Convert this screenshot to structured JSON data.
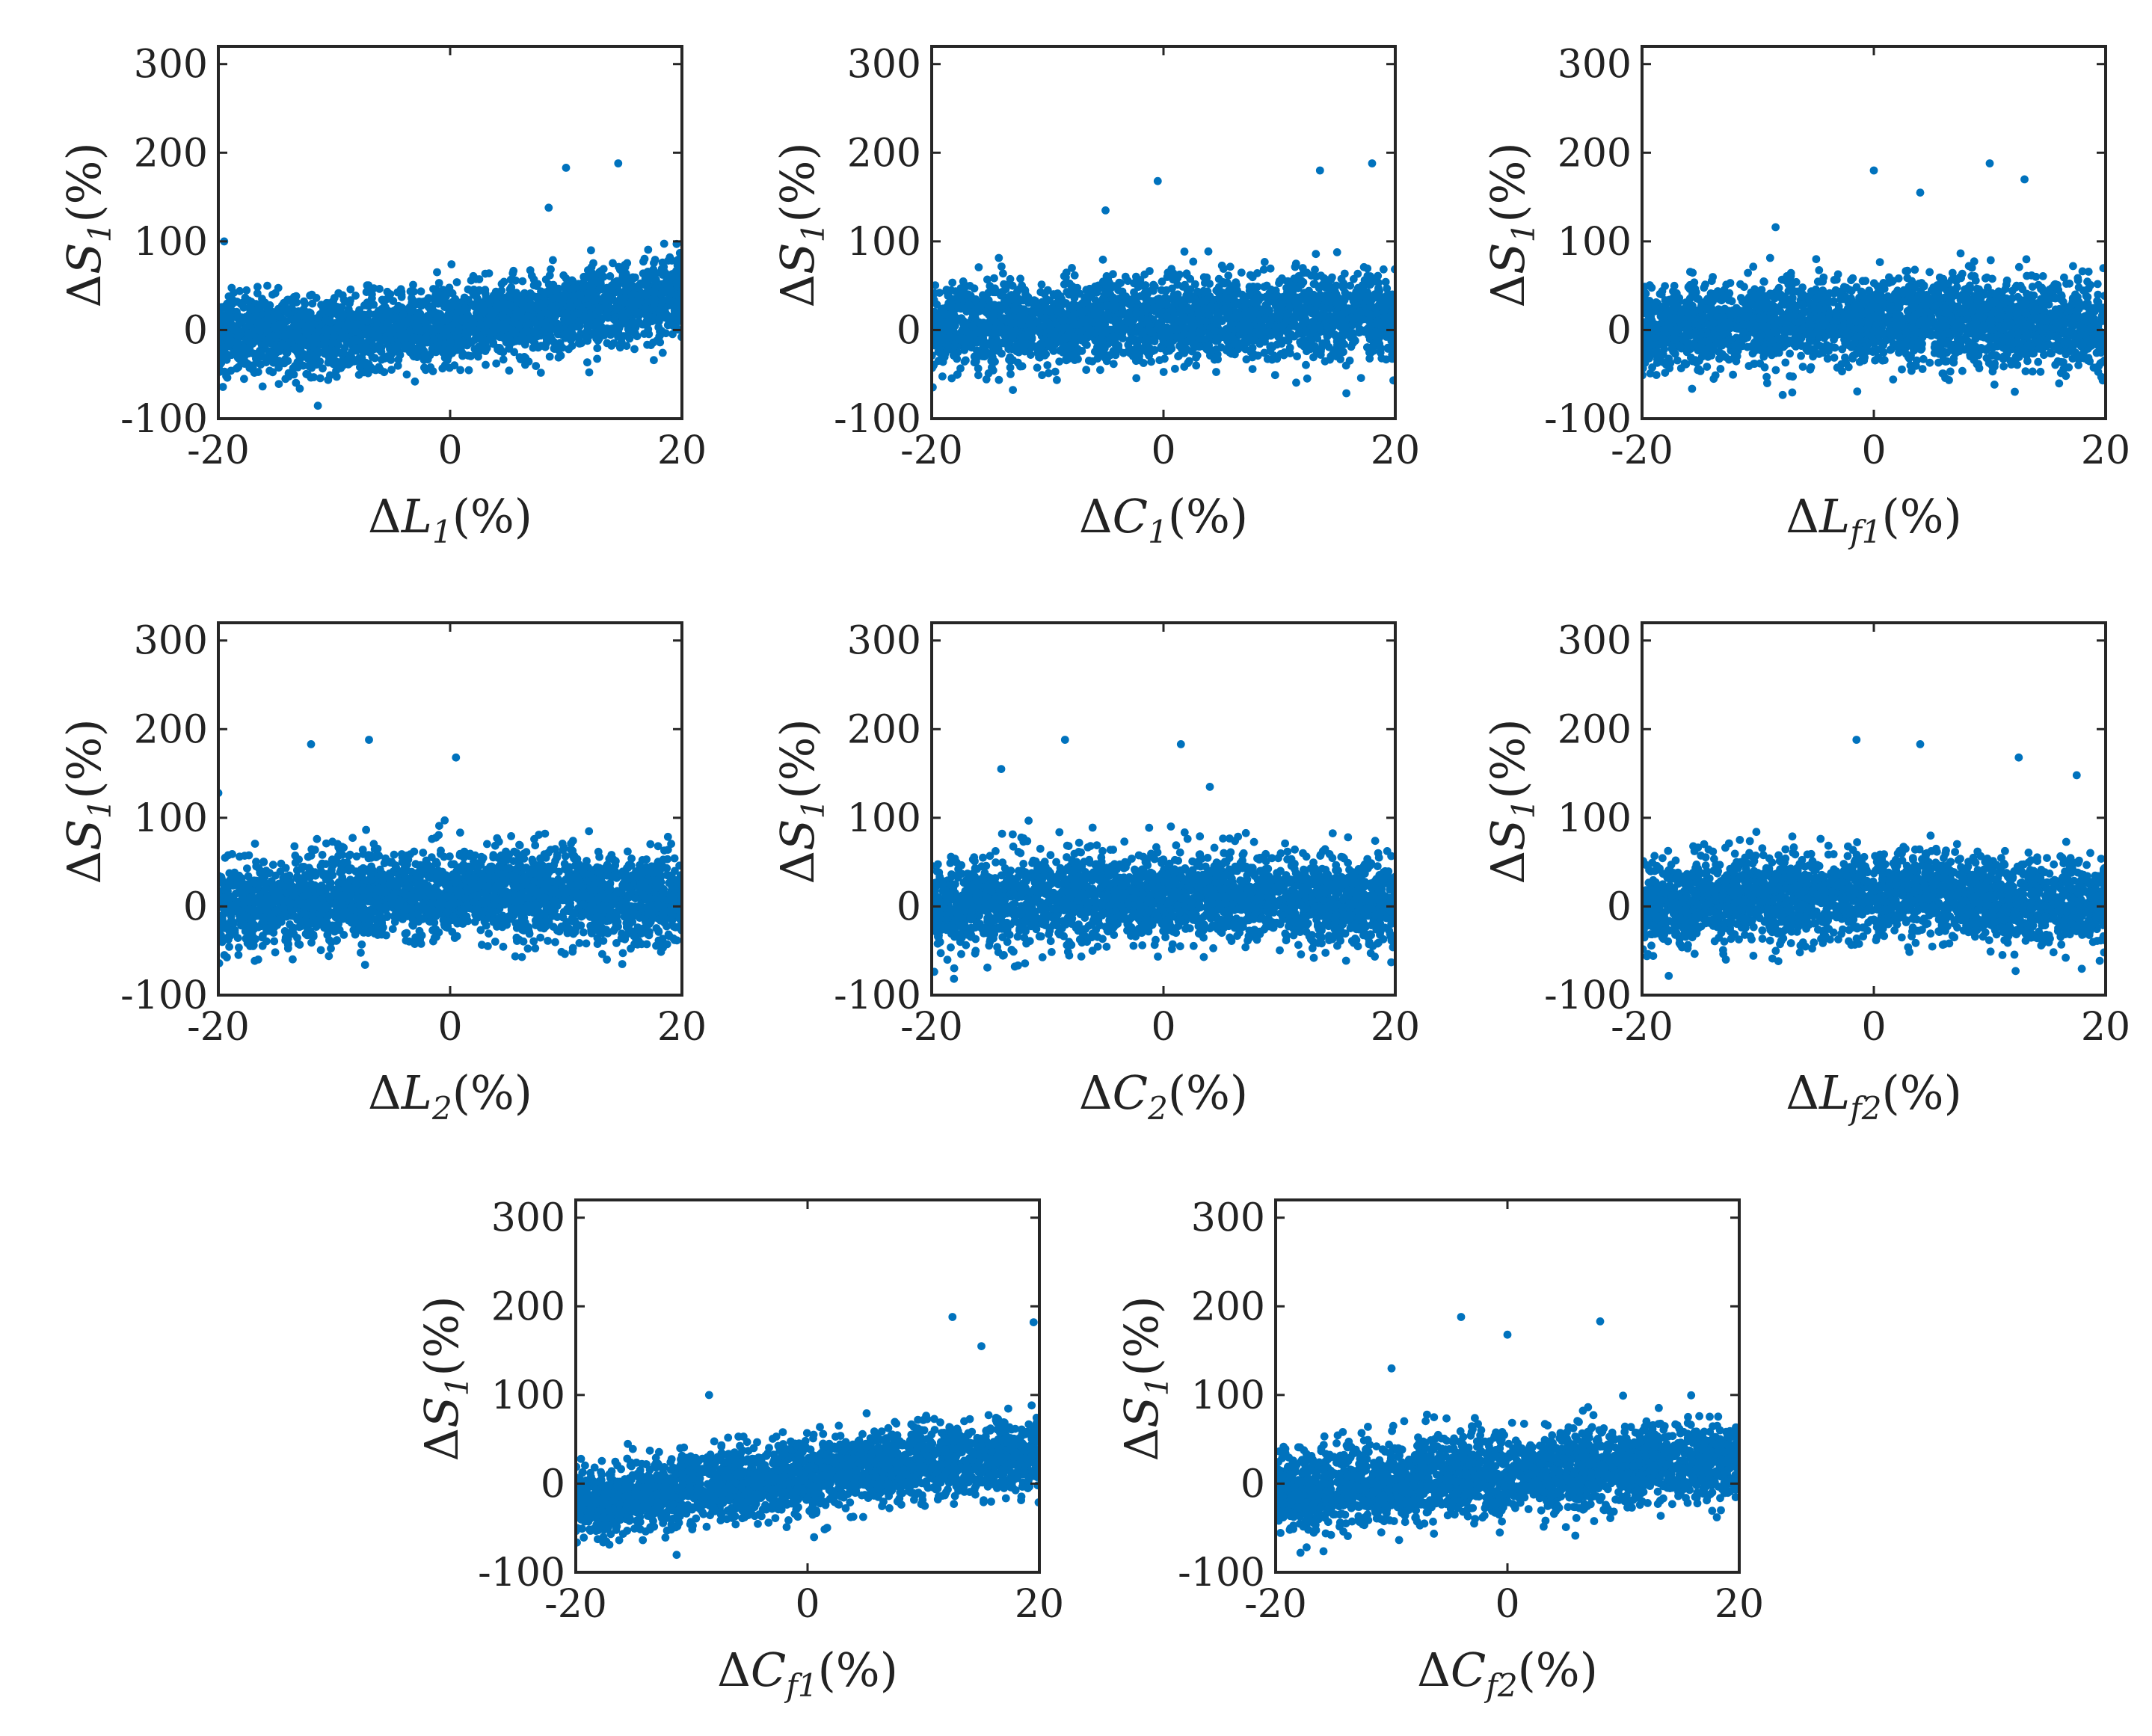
{
  "chart_data": [
    {
      "type": "scatter",
      "xlabel": "ΔL1(%)",
      "ylabel": "ΔS1(%)",
      "xlabel_parts": {
        "delta": "Δ",
        "var": "L",
        "sub": "1",
        "unit": "(%)"
      },
      "ylabel_parts": {
        "delta": "Δ",
        "var": "S",
        "sub": "1",
        "unit": "(%)"
      },
      "xlim": [
        -20,
        20
      ],
      "ylim": [
        -100,
        320
      ],
      "xticks": [
        "-20",
        "0",
        "20"
      ],
      "yticks": [
        "-100",
        "0",
        "100",
        "200",
        "300"
      ],
      "color": "#0072BD",
      "trend": {
        "mean_at_x_-20": -5,
        "mean_at_x_0": 5,
        "mean_at_x_20": 40,
        "spread_sd": 22
      },
      "outliers": [
        {
          "x": 10,
          "y": 183
        },
        {
          "x": 14.5,
          "y": 188
        },
        {
          "x": 8.5,
          "y": 138
        },
        {
          "x": -19.5,
          "y": 100
        }
      ]
    },
    {
      "type": "scatter",
      "xlabel": "ΔC1(%)",
      "ylabel": "ΔS1(%)",
      "xlabel_parts": {
        "delta": "Δ",
        "var": "C",
        "sub": "1",
        "unit": "(%)"
      },
      "ylabel_parts": {
        "delta": "Δ",
        "var": "S",
        "sub": "1",
        "unit": "(%)"
      },
      "xlim": [
        -20,
        20
      ],
      "ylim": [
        -100,
        320
      ],
      "xticks": [
        "-20",
        "0",
        "20"
      ],
      "yticks": [
        "-100",
        "0",
        "100",
        "200",
        "300"
      ],
      "color": "#0072BD",
      "trend": {
        "mean_at_x_-20": 0,
        "mean_at_x_0": 12,
        "mean_at_x_20": 15,
        "spread_sd": 24
      },
      "outliers": [
        {
          "x": -0.5,
          "y": 168
        },
        {
          "x": 13.5,
          "y": 180
        },
        {
          "x": 18,
          "y": 188
        },
        {
          "x": -5,
          "y": 135
        }
      ]
    },
    {
      "type": "scatter",
      "xlabel": "ΔLf1(%)",
      "ylabel": "ΔS1(%)",
      "xlabel_parts": {
        "delta": "Δ",
        "var": "L",
        "sub": "f1",
        "unit": "(%)"
      },
      "ylabel_parts": {
        "delta": "Δ",
        "var": "S",
        "sub": "1",
        "unit": "(%)"
      },
      "xlim": [
        -20,
        20
      ],
      "ylim": [
        -100,
        320
      ],
      "xticks": [
        "-20",
        "0",
        "20"
      ],
      "yticks": [
        "-100",
        "0",
        "100",
        "200",
        "300"
      ],
      "color": "#0072BD",
      "trend": {
        "mean_at_x_-20": 0,
        "mean_at_x_0": 12,
        "mean_at_x_20": 0,
        "spread_sd": 24
      },
      "outliers": [
        {
          "x": 0,
          "y": 180
        },
        {
          "x": 10,
          "y": 188
        },
        {
          "x": 13,
          "y": 170
        },
        {
          "x": 4,
          "y": 155
        }
      ]
    },
    {
      "type": "scatter",
      "xlabel": "ΔL2(%)",
      "ylabel": "ΔS1(%)",
      "xlabel_parts": {
        "delta": "Δ",
        "var": "L",
        "sub": "2",
        "unit": "(%)"
      },
      "ylabel_parts": {
        "delta": "Δ",
        "var": "S",
        "sub": "1",
        "unit": "(%)"
      },
      "xlim": [
        -20,
        20
      ],
      "ylim": [
        -100,
        320
      ],
      "xticks": [
        "-20",
        "0",
        "20"
      ],
      "yticks": [
        "-100",
        "0",
        "100",
        "200",
        "300"
      ],
      "color": "#0072BD",
      "trend": {
        "mean_at_x_-20": -5,
        "mean_at_x_0": 15,
        "mean_at_x_20": 5,
        "spread_sd": 25
      },
      "outliers": [
        {
          "x": -12,
          "y": 183
        },
        {
          "x": -7,
          "y": 188
        },
        {
          "x": 0.5,
          "y": 168
        },
        {
          "x": -20,
          "y": 128
        }
      ]
    },
    {
      "type": "scatter",
      "xlabel": "ΔC2(%)",
      "ylabel": "ΔS1(%)",
      "xlabel_parts": {
        "delta": "Δ",
        "var": "C",
        "sub": "2",
        "unit": "(%)"
      },
      "ylabel_parts": {
        "delta": "Δ",
        "var": "S",
        "sub": "1",
        "unit": "(%)"
      },
      "xlim": [
        -20,
        20
      ],
      "ylim": [
        -100,
        320
      ],
      "xticks": [
        "-20",
        "0",
        "20"
      ],
      "yticks": [
        "-100",
        "0",
        "100",
        "200",
        "300"
      ],
      "color": "#0072BD",
      "trend": {
        "mean_at_x_-20": 0,
        "mean_at_x_0": 12,
        "mean_at_x_20": 0,
        "spread_sd": 25
      },
      "outliers": [
        {
          "x": -8.5,
          "y": 188
        },
        {
          "x": 1.5,
          "y": 183
        },
        {
          "x": -14,
          "y": 155
        },
        {
          "x": 4,
          "y": 135
        }
      ]
    },
    {
      "type": "scatter",
      "xlabel": "ΔLf2(%)",
      "ylabel": "ΔS1(%)",
      "xlabel_parts": {
        "delta": "Δ",
        "var": "L",
        "sub": "f2",
        "unit": "(%)"
      },
      "ylabel_parts": {
        "delta": "Δ",
        "var": "S",
        "sub": "1",
        "unit": "(%)"
      },
      "xlim": [
        -20,
        20
      ],
      "ylim": [
        -100,
        320
      ],
      "xticks": [
        "-20",
        "0",
        "20"
      ],
      "yticks": [
        "-100",
        "0",
        "100",
        "200",
        "300"
      ],
      "color": "#0072BD",
      "trend": {
        "mean_at_x_-20": 0,
        "mean_at_x_0": 12,
        "mean_at_x_20": 0,
        "spread_sd": 24
      },
      "outliers": [
        {
          "x": -1.5,
          "y": 188
        },
        {
          "x": 4,
          "y": 183
        },
        {
          "x": 12.5,
          "y": 168
        },
        {
          "x": 17.5,
          "y": 148
        }
      ]
    },
    {
      "type": "scatter",
      "xlabel": "ΔCf1(%)",
      "ylabel": "ΔS1(%)",
      "xlabel_parts": {
        "delta": "Δ",
        "var": "C",
        "sub": "f1",
        "unit": "(%)"
      },
      "ylabel_parts": {
        "delta": "Δ",
        "var": "S",
        "sub": "1",
        "unit": "(%)"
      },
      "xlim": [
        -20,
        20
      ],
      "ylim": [
        -100,
        320
      ],
      "xticks": [
        "-20",
        "0",
        "20"
      ],
      "yticks": [
        "-100",
        "0",
        "100",
        "200",
        "300"
      ],
      "color": "#0072BD",
      "trend": {
        "mean_at_x_-20": -25,
        "mean_at_x_0": 10,
        "mean_at_x_20": 35,
        "spread_sd": 20
      },
      "outliers": [
        {
          "x": 12.5,
          "y": 188
        },
        {
          "x": 19.5,
          "y": 182
        },
        {
          "x": -8.5,
          "y": 100
        },
        {
          "x": 15,
          "y": 155
        }
      ]
    },
    {
      "type": "scatter",
      "xlabel": "ΔCf2(%)",
      "ylabel": "ΔS1(%)",
      "xlabel_parts": {
        "delta": "Δ",
        "var": "C",
        "sub": "f2",
        "unit": "(%)"
      },
      "ylabel_parts": {
        "delta": "Δ",
        "var": "S",
        "sub": "1",
        "unit": "(%)"
      },
      "xlim": [
        -20,
        20
      ],
      "ylim": [
        -100,
        320
      ],
      "xticks": [
        "-20",
        "0",
        "20"
      ],
      "yticks": [
        "-100",
        "0",
        "100",
        "200",
        "300"
      ],
      "color": "#0072BD",
      "trend": {
        "mean_at_x_-20": -10,
        "mean_at_x_0": 12,
        "mean_at_x_20": 25,
        "spread_sd": 23
      },
      "outliers": [
        {
          "x": -4,
          "y": 188
        },
        {
          "x": 8,
          "y": 183
        },
        {
          "x": 0,
          "y": 168
        },
        {
          "x": -10,
          "y": 130
        }
      ]
    }
  ]
}
